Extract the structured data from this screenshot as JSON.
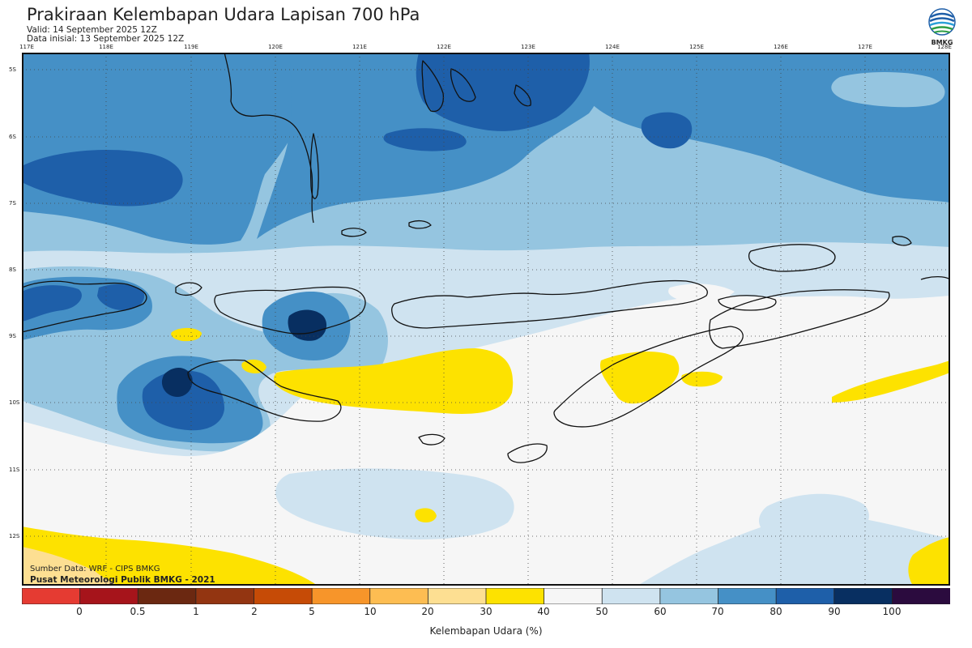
{
  "header": {
    "title": "Prakiraan Kelembapan Udara Lapisan 700 hPa",
    "valid": "Valid: 14 September 2025 12Z",
    "initial": "Data inisial: 13 September 2025 12Z"
  },
  "logo": {
    "icon": "bmkg-logo-icon",
    "text": "BMKG"
  },
  "map": {
    "lon_ticks": [
      "117E",
      "118E",
      "119E",
      "120E",
      "121E",
      "122E",
      "123E",
      "124E",
      "125E",
      "126E",
      "127E",
      "128E"
    ],
    "lat_ticks": [
      "5S",
      "6S",
      "7S",
      "8S",
      "9S",
      "10S",
      "11S",
      "12S"
    ],
    "lon_range": [
      117,
      128
    ],
    "lat_range": [
      -4.8,
      -12.8
    ],
    "gridlines": "dotted",
    "background_class": "50-60",
    "regions": [
      {
        "name": "humidity-band-north",
        "class": "70-80"
      },
      {
        "name": "humidity-zone-north-east",
        "class": "70-80"
      },
      {
        "name": "humidity-zone-banda-sea",
        "class": "80-90"
      },
      {
        "name": "humidity-zone-flores-sea",
        "class": "80-90"
      },
      {
        "name": "humidity-zone-west-lesser-sunda",
        "class": "60-70"
      },
      {
        "name": "humidity-core-lombok",
        "class": "90-100"
      },
      {
        "name": "humidity-core-sumbawa",
        "class": "90-100"
      },
      {
        "name": "humidity-core-sumba",
        "class": "90-100"
      },
      {
        "name": "dry-zone-south",
        "class": "40-50"
      },
      {
        "name": "dry-patch-savu-sea",
        "class": "30-40"
      },
      {
        "name": "dry-patch-timor",
        "class": "30-40"
      },
      {
        "name": "dry-patch-southwest",
        "class": "30-40"
      },
      {
        "name": "dry-patch-southeast",
        "class": "30-40"
      }
    ]
  },
  "credits": {
    "source": "Sumber Data: WRF - CIPS BMKG",
    "producer": "Pusat Meteorologi Publik BMKG - 2021"
  },
  "colorbar": {
    "colors": [
      "#e53b32",
      "#a6141b",
      "#6b2811",
      "#933511",
      "#c64b06",
      "#f7952a",
      "#fdbd52",
      "#fddf92",
      "#fde200",
      "#f6f6f6",
      "#cfe3f0",
      "#95c5e0",
      "#4590c6",
      "#1e5fa9",
      "#082f61",
      "#2b0b3e"
    ],
    "ticks": [
      "0",
      "0.5",
      "1",
      "2",
      "5",
      "10",
      "20",
      "30",
      "40",
      "50",
      "60",
      "70",
      "80",
      "90",
      "100"
    ],
    "label": "Kelembapan Udara (%)"
  }
}
